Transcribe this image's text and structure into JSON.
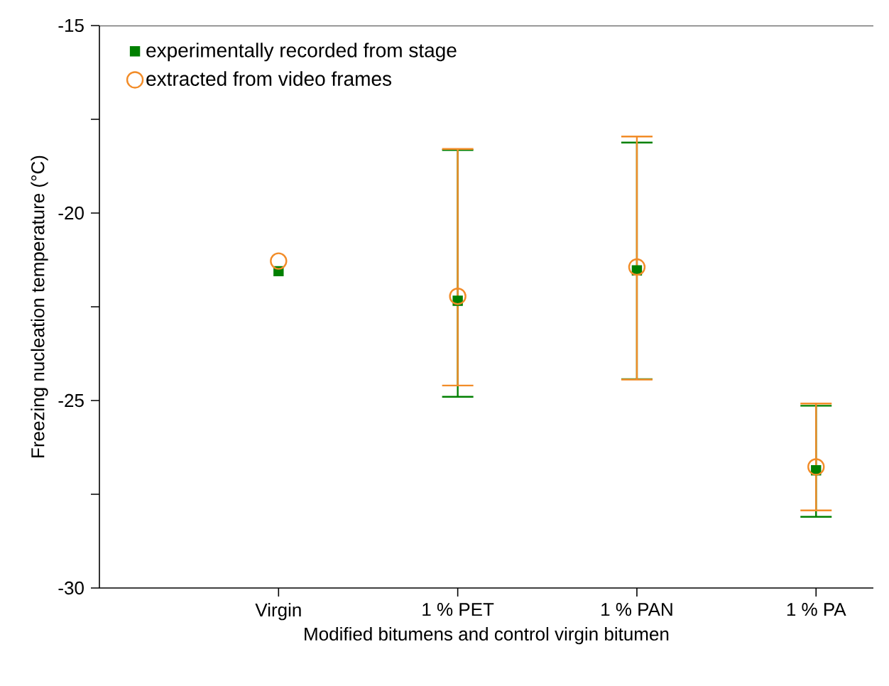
{
  "chart_data": {
    "type": "scatter",
    "xlabel": "Modified bitumens and control virgin bitumen",
    "ylabel": "Freezing nucleation temperature (°C)",
    "categories": [
      "Virgin",
      "1 % PET",
      "1 % PAN",
      "1 % PA"
    ],
    "ylim": [
      -30,
      -15
    ],
    "yticks": [
      -30,
      {
        "value": -27.5,
        "label": null
      },
      -25,
      {
        "value": -22.5,
        "label": null
      },
      -20,
      {
        "value": -17.5,
        "label": null
      },
      -15
    ],
    "legend": "top left",
    "grid": false,
    "series": [
      {
        "name": "experimentally recorded from stage",
        "color": "#008000",
        "marker": "square",
        "values": [
          -21.55,
          -22.34,
          -21.53,
          -26.86
        ],
        "errors": [
          null,
          [
            -24.9,
            -18.32
          ],
          [
            -24.43,
            -18.12
          ],
          [
            -28.1,
            -25.14
          ]
        ]
      },
      {
        "name": "extracted from video frames",
        "color": "#f28c28",
        "marker": "circle",
        "values": [
          -21.28,
          -22.22,
          -21.44,
          -26.77
        ],
        "errors": [
          null,
          [
            -24.6,
            -18.29
          ],
          [
            -24.44,
            -17.96
          ],
          [
            -27.93,
            -25.08
          ]
        ]
      }
    ]
  }
}
